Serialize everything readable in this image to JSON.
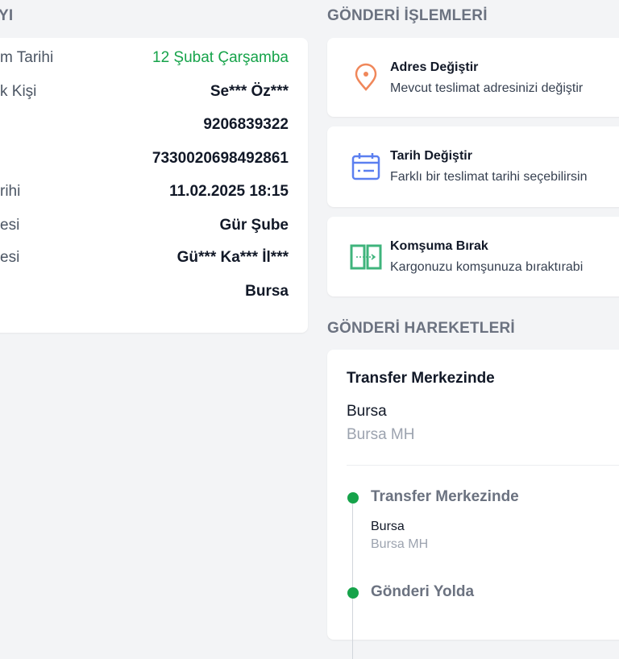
{
  "left_section": {
    "title_fragment": "YI",
    "rows": [
      {
        "label": "m Tarihi",
        "value": "12 Şubat Çarşamba"
      },
      {
        "label": "k Kişi",
        "value": "Se*** Öz***"
      },
      {
        "label": "",
        "value": "9206839322"
      },
      {
        "label": "",
        "value": "7330020698492861"
      },
      {
        "label": "rihi",
        "value": "11.02.2025 18:15"
      },
      {
        "label": "esi",
        "value": "Gür Şube"
      },
      {
        "label": "esi",
        "value": "Gü*** Ka*** İl***"
      },
      {
        "label": "",
        "value": "Bursa"
      }
    ]
  },
  "actions": {
    "title": "GÖNDERİ İŞLEMLERİ",
    "items": [
      {
        "title": "Adres Değiştir",
        "desc": "Mevcut teslimat adresinizi değiştir",
        "icon": "map-pin-icon",
        "color": "#f0875a"
      },
      {
        "title": "Tarih Değiştir",
        "desc": "Farklı bir teslimat tarihi seçebilirsin",
        "icon": "calendar-icon",
        "color": "#5b7ff0"
      },
      {
        "title": "Komşuma Bırak",
        "desc": "Kargonuzu komşunuza bıraktırabi",
        "icon": "neighbor-door-icon",
        "color": "#3fb47c"
      }
    ]
  },
  "movements": {
    "title": "GÖNDERİ HAREKETLERİ",
    "current": {
      "status": "Transfer Merkezinde",
      "city": "Bursa",
      "branch": "Bursa MH"
    },
    "timeline": [
      {
        "status": "Transfer Merkezinde",
        "city": "Bursa",
        "branch": "Bursa MH"
      },
      {
        "status": "Gönderi Yolda"
      }
    ]
  },
  "colors": {
    "accent_green": "#16a34a",
    "background": "#f3f4f6"
  }
}
